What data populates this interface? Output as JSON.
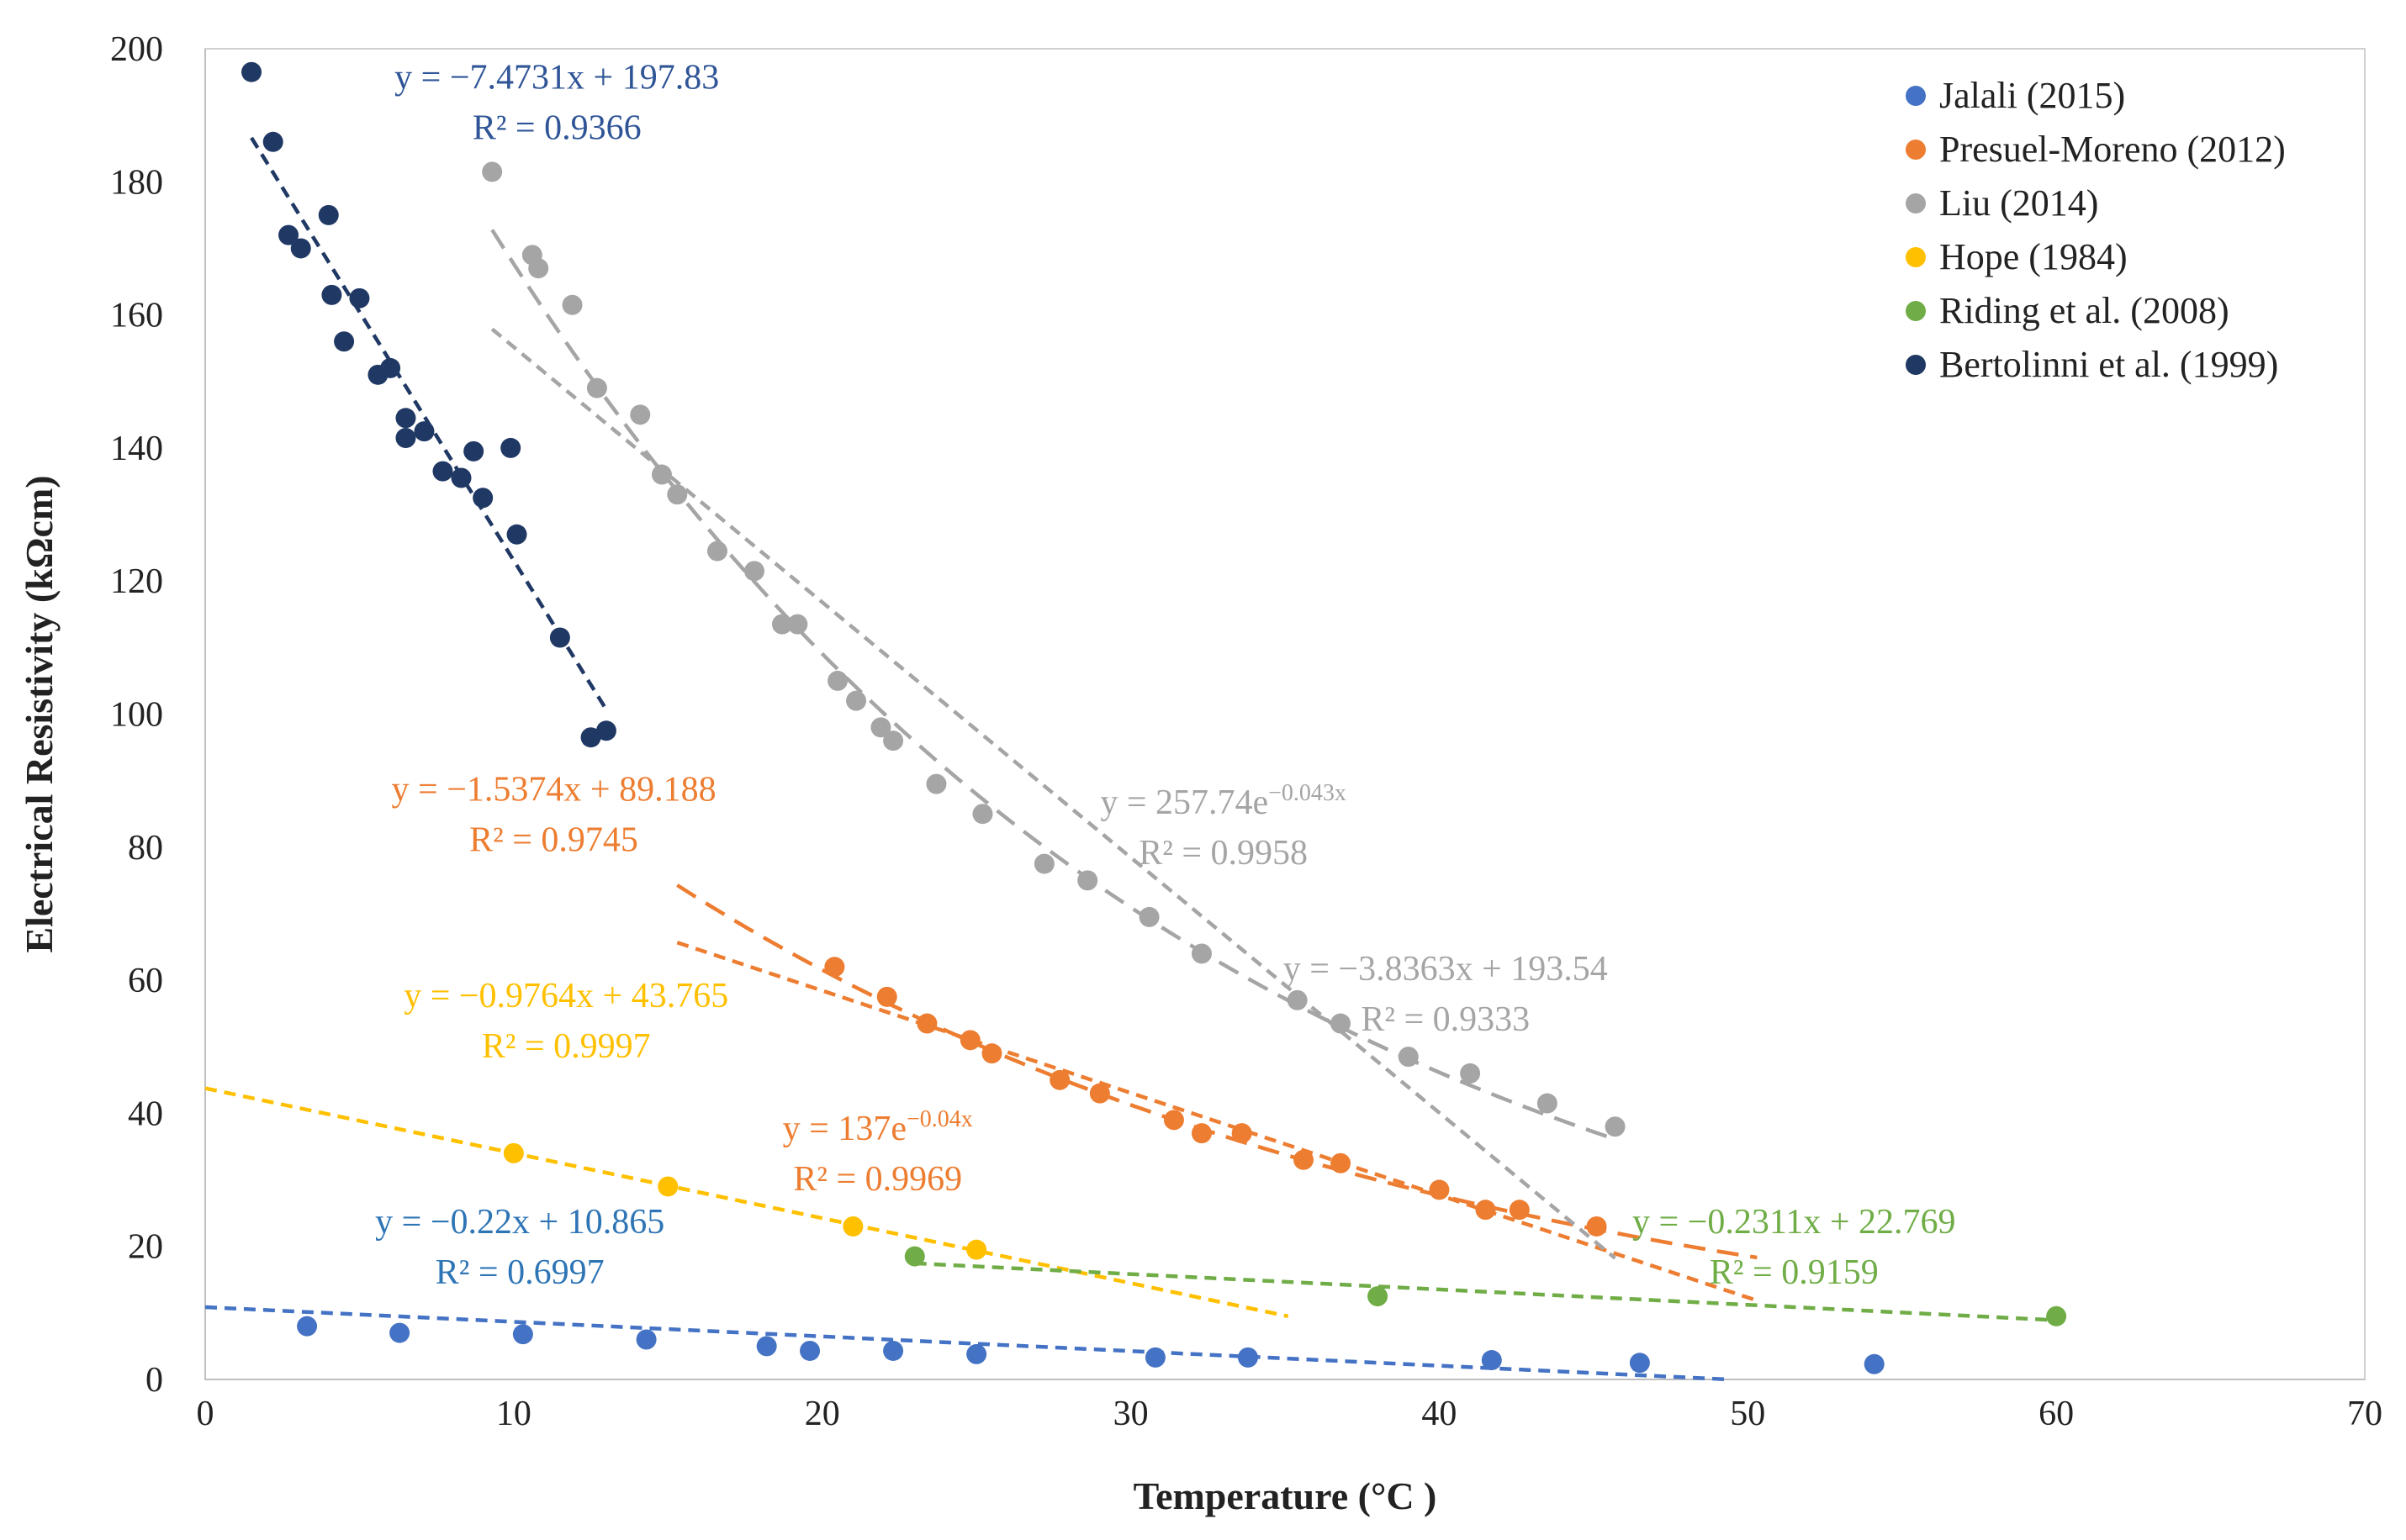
{
  "chart_data": {
    "type": "scatter",
    "title": "",
    "xlabel": "Temperature (°C )",
    "ylabel": "Electrical  Resistivity  (kΩcm)",
    "xlim": [
      0,
      70
    ],
    "ylim": [
      0,
      200
    ],
    "xticks": [
      "0",
      "10",
      "20",
      "30",
      "40",
      "50",
      "60",
      "70"
    ],
    "yticks": [
      "0",
      "20",
      "40",
      "60",
      "80",
      "100",
      "120",
      "140",
      "160",
      "180",
      "200"
    ],
    "grid": false,
    "legend_position": "top-right",
    "series": [
      {
        "name": "Jalali (2015)",
        "color": "#4472C4",
        "points": [
          [
            3.3,
            8
          ],
          [
            6.3,
            7
          ],
          [
            10.3,
            6.8
          ],
          [
            14.3,
            6
          ],
          [
            18.2,
            5
          ],
          [
            19.6,
            4.3
          ],
          [
            22.3,
            4.3
          ],
          [
            25,
            3.8
          ],
          [
            30.8,
            3.3
          ],
          [
            33.8,
            3.3
          ],
          [
            41.7,
            2.9
          ],
          [
            46.5,
            2.5
          ],
          [
            54.1,
            2.3
          ]
        ],
        "trendlines": [
          {
            "kind": "linear",
            "slope": -0.22,
            "intercept": 10.865,
            "x_range": [
              0,
              49.4
            ],
            "equation": "y = −0.22x + 10.865",
            "r2": "R² = 0.6997",
            "label_color": "#2E75B6"
          }
        ]
      },
      {
        "name": "Presuel-Moreno (2012)",
        "color": "#ED7D31",
        "points": [
          [
            20.4,
            62
          ],
          [
            22.1,
            57.5
          ],
          [
            23.4,
            53.5
          ],
          [
            24.8,
            51
          ],
          [
            25.5,
            49
          ],
          [
            27.7,
            45
          ],
          [
            29,
            43
          ],
          [
            31.4,
            39
          ],
          [
            32.3,
            37
          ],
          [
            33.6,
            37
          ],
          [
            35.6,
            33
          ],
          [
            36.8,
            32.5
          ],
          [
            40,
            28.5
          ],
          [
            41.5,
            25.5
          ],
          [
            42.6,
            25.5
          ],
          [
            45.1,
            23
          ]
        ],
        "trendlines": [
          {
            "kind": "linear",
            "slope": -1.5374,
            "intercept": 89.188,
            "x_range": [
              15.3,
              50.3
            ],
            "equation": "y = −1.5374x + 89.188",
            "r2": "R² = 0.9745",
            "label_color": "#ED7D31"
          },
          {
            "kind": "exp",
            "a": 137,
            "b": -0.04,
            "x_range": [
              15.3,
              50.3
            ],
            "equation_base": "y = 137e",
            "equation_exp": "−0.04x",
            "r2": "R² = 0.9969",
            "label_color": "#ED7D31"
          }
        ]
      },
      {
        "name": "Liu (2014)",
        "color": "#A5A5A5",
        "points": [
          [
            9.3,
            181.5
          ],
          [
            10.6,
            169
          ],
          [
            10.8,
            167
          ],
          [
            11.9,
            161.5
          ],
          [
            12.7,
            149
          ],
          [
            14.1,
            145
          ],
          [
            14.8,
            136
          ],
          [
            15.3,
            133
          ],
          [
            16.6,
            124.5
          ],
          [
            17.8,
            121.5
          ],
          [
            18.7,
            113.5
          ],
          [
            19.2,
            113.5
          ],
          [
            20.5,
            105
          ],
          [
            21.1,
            102
          ],
          [
            21.9,
            98
          ],
          [
            22.3,
            96
          ],
          [
            23.7,
            89.5
          ],
          [
            25.2,
            85
          ],
          [
            27.2,
            77.5
          ],
          [
            28.6,
            75
          ],
          [
            30.6,
            69.5
          ],
          [
            32.3,
            64
          ],
          [
            35.4,
            57
          ],
          [
            36.8,
            53.5
          ],
          [
            39,
            48.5
          ],
          [
            41,
            46
          ],
          [
            43.5,
            41.5
          ],
          [
            45.7,
            38
          ]
        ],
        "trendlines": [
          {
            "kind": "linear",
            "slope": -3.8363,
            "intercept": 193.54,
            "x_range": [
              9.3,
              45.7
            ],
            "equation": "y = −3.8363x + 193.54",
            "r2": "R² = 0.9333",
            "label_color": "#A5A5A5"
          },
          {
            "kind": "exp",
            "a": 257.74,
            "b": -0.043,
            "x_range": [
              9.3,
              45.7
            ],
            "equation_base": "y = 257.74e",
            "equation_exp": "−0.043x",
            "r2": "R² = 0.9958",
            "label_color": "#A5A5A5"
          }
        ]
      },
      {
        "name": "Hope (1984)",
        "color": "#FFC000",
        "points": [
          [
            10,
            34
          ],
          [
            15,
            29
          ],
          [
            21,
            23
          ],
          [
            25,
            19.5
          ]
        ],
        "trendlines": [
          {
            "kind": "linear",
            "slope": -0.9764,
            "intercept": 43.765,
            "x_range": [
              0,
              35.1
            ],
            "equation": "y = −0.9764x + 43.765",
            "r2": "R² = 0.9997",
            "label_color": "#FFC000"
          }
        ]
      },
      {
        "name": "Riding et al. (2008)",
        "color": "#70AD47",
        "points": [
          [
            23,
            18.5
          ],
          [
            38,
            12.5
          ],
          [
            60,
            9.5
          ]
        ],
        "trendlines": [
          {
            "kind": "linear",
            "slope": -0.2311,
            "intercept": 22.769,
            "x_range": [
              23,
              60
            ],
            "equation": "y = −0.2311x + 22.769",
            "r2": "R² = 0.9159",
            "label_color": "#70AD47"
          }
        ]
      },
      {
        "name": "Bertolinni et al. (1999)",
        "color": "#203864",
        "points": [
          [
            1.5,
            196.5
          ],
          [
            2.2,
            186
          ],
          [
            2.7,
            172
          ],
          [
            3.1,
            170
          ],
          [
            4,
            175
          ],
          [
            4.1,
            163
          ],
          [
            4.5,
            156
          ],
          [
            5,
            162.5
          ],
          [
            5.6,
            151
          ],
          [
            6,
            152
          ],
          [
            6.5,
            144.5
          ],
          [
            6.5,
            141.5
          ],
          [
            7.1,
            142.5
          ],
          [
            7.7,
            136.5
          ],
          [
            8.3,
            135.5
          ],
          [
            8.7,
            139.5
          ],
          [
            9,
            132.5
          ],
          [
            9.9,
            140
          ],
          [
            10.1,
            127
          ],
          [
            11.5,
            111.5
          ],
          [
            12.5,
            96.5
          ],
          [
            13,
            97.5
          ]
        ],
        "trendlines": [
          {
            "kind": "linear",
            "slope": -7.4731,
            "intercept": 197.83,
            "x_range": [
              1.5,
              13
            ],
            "equation": "y = −7.4731x + 197.83",
            "r2": "R² = 0.9366",
            "label_color": "#2F5597"
          }
        ]
      }
    ]
  }
}
